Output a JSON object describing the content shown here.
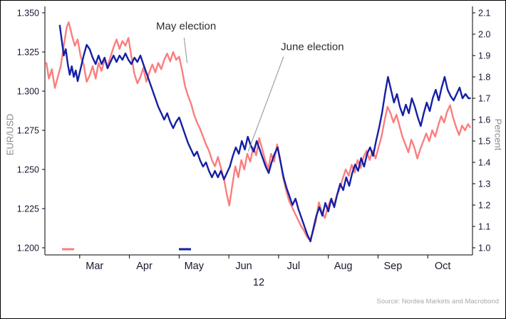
{
  "chart_data": {
    "type": "line",
    "title": "",
    "x_axis": {
      "min": 2.3,
      "max": 10.9,
      "month_labels": [
        "Mar",
        "Apr",
        "May",
        "Jun",
        "Jul",
        "Aug",
        "Sep",
        "Oct"
      ],
      "month_label_positions": [
        3.3,
        4.3,
        5.3,
        6.3,
        7.3,
        8.3,
        9.3,
        10.3
      ],
      "month_boundary_ticks": [
        3,
        4,
        5,
        6,
        7,
        8,
        9,
        10
      ],
      "year_label": "12"
    },
    "y_left": {
      "title": "EUR/USD",
      "min": 1.2,
      "max": 1.35,
      "ticks": [
        "1.350",
        "1.325",
        "1.300",
        "1.275",
        "1.250",
        "1.225",
        "1.200"
      ]
    },
    "y_right": {
      "title": "Percent",
      "min": 1.0,
      "max": 2.1,
      "ticks": [
        "2.1",
        "2.0",
        "1.9",
        "1.8",
        "1.7",
        "1.6",
        "1.5",
        "1.4",
        "1.3",
        "1.2",
        "1.1",
        "1.0"
      ]
    },
    "series": [
      {
        "name": "EUR/USD",
        "axis": "left",
        "color": "#fb7e7e",
        "points": [
          [
            2.33,
            1.318
          ],
          [
            2.38,
            1.308
          ],
          [
            2.44,
            1.314
          ],
          [
            2.5,
            1.302
          ],
          [
            2.56,
            1.309
          ],
          [
            2.62,
            1.316
          ],
          [
            2.68,
            1.329
          ],
          [
            2.74,
            1.341
          ],
          [
            2.78,
            1.344
          ],
          [
            2.84,
            1.336
          ],
          [
            2.9,
            1.329
          ],
          [
            2.96,
            1.333
          ],
          [
            3.02,
            1.322
          ],
          [
            3.08,
            1.317
          ],
          [
            3.14,
            1.306
          ],
          [
            3.2,
            1.31
          ],
          [
            3.26,
            1.316
          ],
          [
            3.32,
            1.308
          ],
          [
            3.38,
            1.318
          ],
          [
            3.44,
            1.313
          ],
          [
            3.5,
            1.32
          ],
          [
            3.56,
            1.316
          ],
          [
            3.62,
            1.322
          ],
          [
            3.68,
            1.328
          ],
          [
            3.74,
            1.333
          ],
          [
            3.8,
            1.327
          ],
          [
            3.86,
            1.332
          ],
          [
            3.92,
            1.329
          ],
          [
            3.98,
            1.334
          ],
          [
            4.04,
            1.322
          ],
          [
            4.1,
            1.311
          ],
          [
            4.16,
            1.305
          ],
          [
            4.22,
            1.309
          ],
          [
            4.28,
            1.315
          ],
          [
            4.34,
            1.306
          ],
          [
            4.4,
            1.312
          ],
          [
            4.46,
            1.317
          ],
          [
            4.52,
            1.312
          ],
          [
            4.58,
            1.318
          ],
          [
            4.64,
            1.314
          ],
          [
            4.7,
            1.32
          ],
          [
            4.76,
            1.324
          ],
          [
            4.82,
            1.319
          ],
          [
            4.88,
            1.325
          ],
          [
            4.94,
            1.32
          ],
          [
            5.0,
            1.322
          ],
          [
            5.06,
            1.313
          ],
          [
            5.12,
            1.303
          ],
          [
            5.18,
            1.297
          ],
          [
            5.24,
            1.292
          ],
          [
            5.3,
            1.285
          ],
          [
            5.36,
            1.28
          ],
          [
            5.42,
            1.276
          ],
          [
            5.48,
            1.271
          ],
          [
            5.54,
            1.266
          ],
          [
            5.6,
            1.262
          ],
          [
            5.66,
            1.256
          ],
          [
            5.72,
            1.252
          ],
          [
            5.78,
            1.258
          ],
          [
            5.84,
            1.251
          ],
          [
            5.9,
            1.244
          ],
          [
            5.96,
            1.234
          ],
          [
            6.01,
            1.227
          ],
          [
            6.07,
            1.24
          ],
          [
            6.13,
            1.252
          ],
          [
            6.19,
            1.245
          ],
          [
            6.25,
            1.256
          ],
          [
            6.31,
            1.25
          ],
          [
            6.37,
            1.26
          ],
          [
            6.43,
            1.255
          ],
          [
            6.49,
            1.264
          ],
          [
            6.55,
            1.259
          ],
          [
            6.61,
            1.27
          ],
          [
            6.67,
            1.263
          ],
          [
            6.73,
            1.256
          ],
          [
            6.79,
            1.25
          ],
          [
            6.85,
            1.26
          ],
          [
            6.91,
            1.255
          ],
          [
            6.97,
            1.266
          ],
          [
            7.03,
            1.257
          ],
          [
            7.09,
            1.245
          ],
          [
            7.15,
            1.237
          ],
          [
            7.21,
            1.23
          ],
          [
            7.27,
            1.226
          ],
          [
            7.33,
            1.222
          ],
          [
            7.39,
            1.218
          ],
          [
            7.45,
            1.214
          ],
          [
            7.51,
            1.211
          ],
          [
            7.57,
            1.207
          ],
          [
            7.63,
            1.205
          ],
          [
            7.69,
            1.21
          ],
          [
            7.75,
            1.217
          ],
          [
            7.81,
            1.229
          ],
          [
            7.87,
            1.223
          ],
          [
            7.93,
            1.219
          ],
          [
            7.99,
            1.226
          ],
          [
            8.05,
            1.231
          ],
          [
            8.11,
            1.227
          ],
          [
            8.17,
            1.233
          ],
          [
            8.23,
            1.238
          ],
          [
            8.29,
            1.244
          ],
          [
            8.35,
            1.25
          ],
          [
            8.41,
            1.246
          ],
          [
            8.47,
            1.253
          ],
          [
            8.53,
            1.248
          ],
          [
            8.59,
            1.256
          ],
          [
            8.65,
            1.251
          ],
          [
            8.71,
            1.258
          ],
          [
            8.77,
            1.262
          ],
          [
            8.83,
            1.256
          ],
          [
            8.89,
            1.262
          ],
          [
            8.95,
            1.257
          ],
          [
            9.01,
            1.264
          ],
          [
            9.07,
            1.271
          ],
          [
            9.13,
            1.281
          ],
          [
            9.19,
            1.29
          ],
          [
            9.25,
            1.286
          ],
          [
            9.31,
            1.28
          ],
          [
            9.37,
            1.285
          ],
          [
            9.43,
            1.278
          ],
          [
            9.49,
            1.271
          ],
          [
            9.55,
            1.266
          ],
          [
            9.61,
            1.261
          ],
          [
            9.67,
            1.269
          ],
          [
            9.73,
            1.264
          ],
          [
            9.79,
            1.257
          ],
          [
            9.85,
            1.263
          ],
          [
            9.91,
            1.268
          ],
          [
            9.97,
            1.273
          ],
          [
            10.03,
            1.268
          ],
          [
            10.09,
            1.275
          ],
          [
            10.15,
            1.271
          ],
          [
            10.21,
            1.278
          ],
          [
            10.27,
            1.284
          ],
          [
            10.33,
            1.28
          ],
          [
            10.39,
            1.287
          ],
          [
            10.45,
            1.291
          ],
          [
            10.51,
            1.283
          ],
          [
            10.57,
            1.277
          ],
          [
            10.63,
            1.272
          ],
          [
            10.69,
            1.278
          ],
          [
            10.75,
            1.275
          ],
          [
            10.81,
            1.279
          ],
          [
            10.85,
            1.277
          ]
        ]
      },
      {
        "name": "Percent",
        "axis": "right",
        "color": "#141fa5",
        "points": [
          [
            2.6,
            2.04
          ],
          [
            2.64,
            1.97
          ],
          [
            2.68,
            1.9
          ],
          [
            2.72,
            1.93
          ],
          [
            2.76,
            1.86
          ],
          [
            2.8,
            1.81
          ],
          [
            2.84,
            1.85
          ],
          [
            2.88,
            1.8
          ],
          [
            2.92,
            1.83
          ],
          [
            2.96,
            1.78
          ],
          [
            3.02,
            1.84
          ],
          [
            3.08,
            1.9
          ],
          [
            3.14,
            1.95
          ],
          [
            3.2,
            1.93
          ],
          [
            3.26,
            1.89
          ],
          [
            3.32,
            1.86
          ],
          [
            3.38,
            1.9
          ],
          [
            3.44,
            1.86
          ],
          [
            3.5,
            1.89
          ],
          [
            3.56,
            1.84
          ],
          [
            3.62,
            1.87
          ],
          [
            3.68,
            1.9
          ],
          [
            3.74,
            1.87
          ],
          [
            3.8,
            1.9
          ],
          [
            3.86,
            1.88
          ],
          [
            3.92,
            1.91
          ],
          [
            3.98,
            1.88
          ],
          [
            4.04,
            1.86
          ],
          [
            4.1,
            1.89
          ],
          [
            4.16,
            1.87
          ],
          [
            4.22,
            1.9
          ],
          [
            4.28,
            1.86
          ],
          [
            4.34,
            1.82
          ],
          [
            4.4,
            1.78
          ],
          [
            4.46,
            1.74
          ],
          [
            4.52,
            1.7
          ],
          [
            4.58,
            1.66
          ],
          [
            4.64,
            1.63
          ],
          [
            4.7,
            1.6
          ],
          [
            4.76,
            1.63
          ],
          [
            4.82,
            1.59
          ],
          [
            4.88,
            1.56
          ],
          [
            4.94,
            1.59
          ],
          [
            5.0,
            1.61
          ],
          [
            5.06,
            1.57
          ],
          [
            5.12,
            1.53
          ],
          [
            5.18,
            1.49
          ],
          [
            5.24,
            1.46
          ],
          [
            5.3,
            1.43
          ],
          [
            5.36,
            1.45
          ],
          [
            5.42,
            1.41
          ],
          [
            5.48,
            1.38
          ],
          [
            5.54,
            1.4
          ],
          [
            5.6,
            1.36
          ],
          [
            5.66,
            1.33
          ],
          [
            5.72,
            1.36
          ],
          [
            5.78,
            1.33
          ],
          [
            5.84,
            1.36
          ],
          [
            5.9,
            1.32
          ],
          [
            5.96,
            1.35
          ],
          [
            6.02,
            1.38
          ],
          [
            6.08,
            1.43
          ],
          [
            6.14,
            1.47
          ],
          [
            6.2,
            1.44
          ],
          [
            6.26,
            1.5
          ],
          [
            6.32,
            1.46
          ],
          [
            6.38,
            1.52
          ],
          [
            6.44,
            1.48
          ],
          [
            6.5,
            1.45
          ],
          [
            6.56,
            1.5
          ],
          [
            6.62,
            1.46
          ],
          [
            6.68,
            1.42
          ],
          [
            6.74,
            1.38
          ],
          [
            6.8,
            1.35
          ],
          [
            6.86,
            1.4
          ],
          [
            6.92,
            1.44
          ],
          [
            6.98,
            1.47
          ],
          [
            7.04,
            1.4
          ],
          [
            7.1,
            1.33
          ],
          [
            7.16,
            1.28
          ],
          [
            7.22,
            1.24
          ],
          [
            7.28,
            1.2
          ],
          [
            7.34,
            1.23
          ],
          [
            7.4,
            1.18
          ],
          [
            7.46,
            1.14
          ],
          [
            7.52,
            1.1
          ],
          [
            7.58,
            1.06
          ],
          [
            7.64,
            1.03
          ],
          [
            7.7,
            1.09
          ],
          [
            7.76,
            1.15
          ],
          [
            7.82,
            1.19
          ],
          [
            7.88,
            1.15
          ],
          [
            7.94,
            1.21
          ],
          [
            8.0,
            1.17
          ],
          [
            8.06,
            1.23
          ],
          [
            8.12,
            1.19
          ],
          [
            8.18,
            1.25
          ],
          [
            8.24,
            1.3
          ],
          [
            8.3,
            1.27
          ],
          [
            8.36,
            1.33
          ],
          [
            8.42,
            1.29
          ],
          [
            8.48,
            1.35
          ],
          [
            8.54,
            1.39
          ],
          [
            8.6,
            1.36
          ],
          [
            8.66,
            1.42
          ],
          [
            8.72,
            1.38
          ],
          [
            8.78,
            1.44
          ],
          [
            8.84,
            1.47
          ],
          [
            8.9,
            1.43
          ],
          [
            8.96,
            1.5
          ],
          [
            9.02,
            1.56
          ],
          [
            9.08,
            1.63
          ],
          [
            9.14,
            1.72
          ],
          [
            9.2,
            1.8
          ],
          [
            9.26,
            1.74
          ],
          [
            9.32,
            1.68
          ],
          [
            9.38,
            1.72
          ],
          [
            9.44,
            1.66
          ],
          [
            9.5,
            1.62
          ],
          [
            9.56,
            1.67
          ],
          [
            9.62,
            1.63
          ],
          [
            9.68,
            1.7
          ],
          [
            9.74,
            1.66
          ],
          [
            9.8,
            1.61
          ],
          [
            9.86,
            1.57
          ],
          [
            9.92,
            1.63
          ],
          [
            9.98,
            1.68
          ],
          [
            10.04,
            1.64
          ],
          [
            10.1,
            1.7
          ],
          [
            10.16,
            1.74
          ],
          [
            10.22,
            1.69
          ],
          [
            10.28,
            1.75
          ],
          [
            10.34,
            1.8
          ],
          [
            10.4,
            1.74
          ],
          [
            10.46,
            1.71
          ],
          [
            10.52,
            1.69
          ],
          [
            10.58,
            1.72
          ],
          [
            10.64,
            1.75
          ],
          [
            10.7,
            1.7
          ],
          [
            10.76,
            1.72
          ],
          [
            10.82,
            1.7
          ],
          [
            10.85,
            1.7
          ]
        ]
      }
    ],
    "annotations": [
      {
        "text": "May election",
        "tx": 5.14,
        "ty": 1.3415,
        "leader": [
          [
            5.1,
            1.334
          ],
          [
            5.16,
            1.318
          ]
        ]
      },
      {
        "text": "June election",
        "tx": 7.68,
        "ty": 1.3285,
        "leader": [
          [
            7.1,
            1.322
          ],
          [
            6.39,
            1.2615
          ]
        ]
      }
    ],
    "legend": [
      "EUR/USD",
      "Percent"
    ],
    "source": "Source: Nordea Markets and Macrobond"
  }
}
